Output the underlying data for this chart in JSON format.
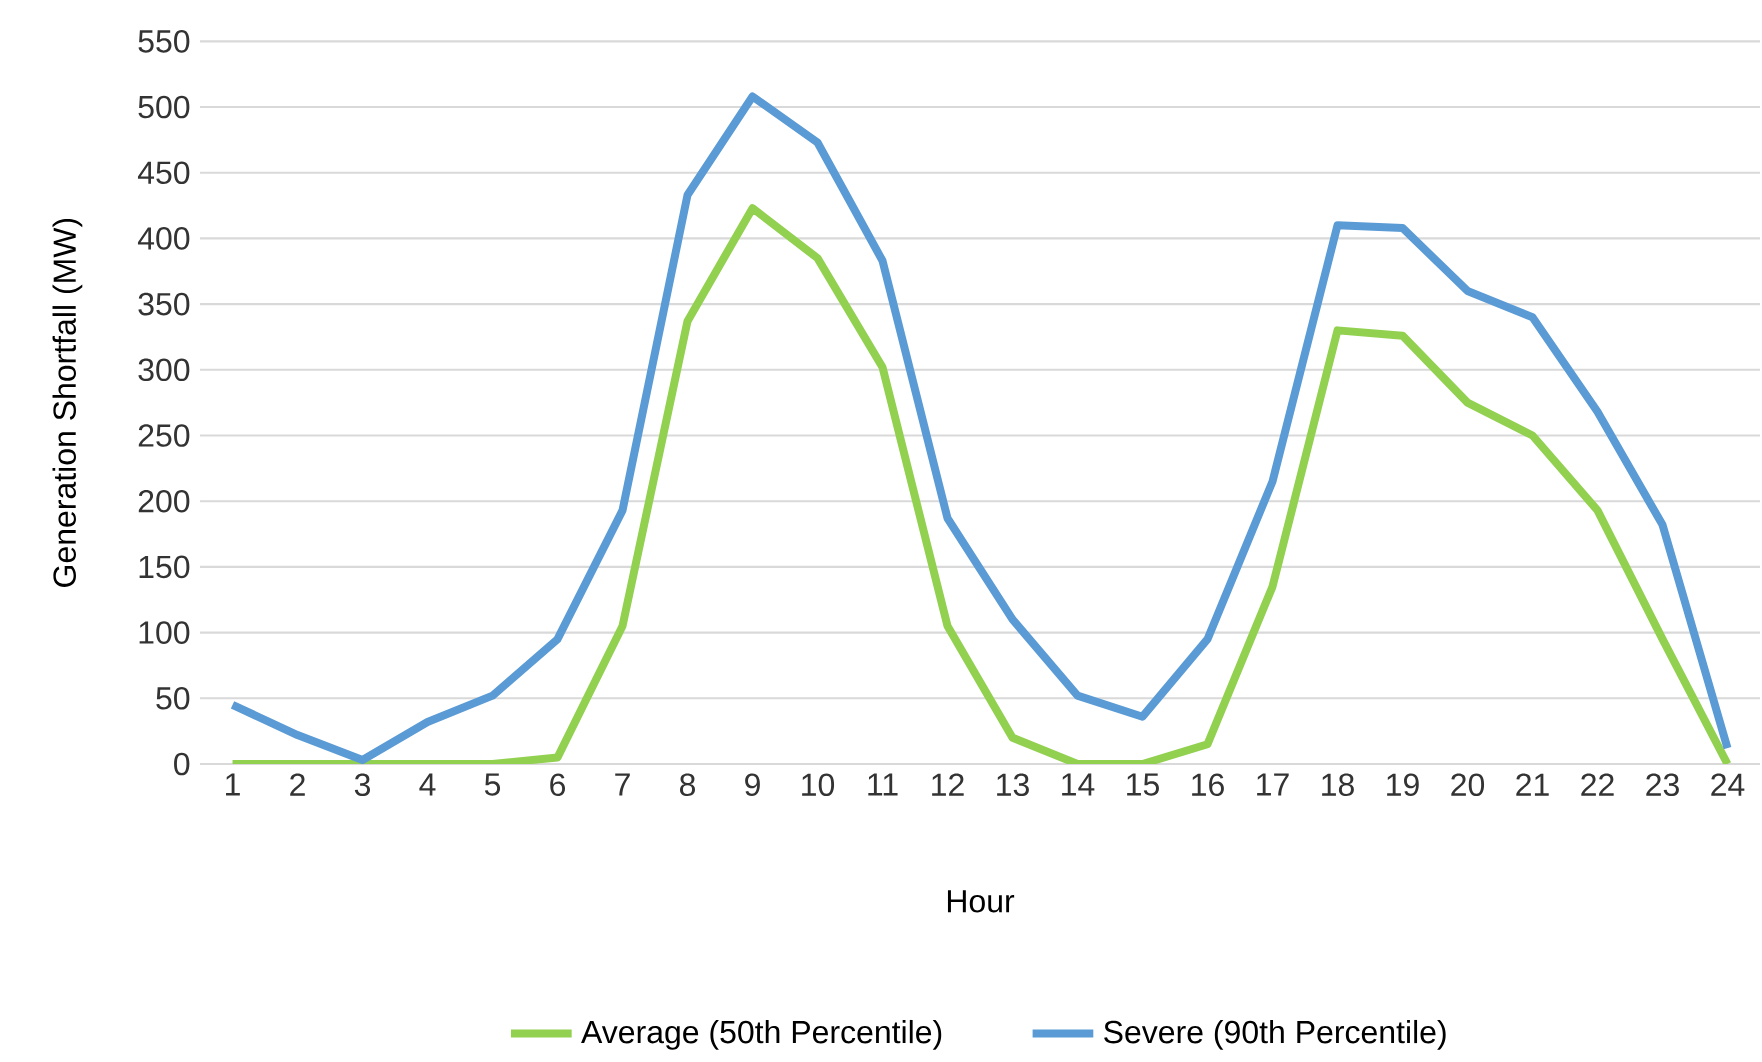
{
  "chart_data": {
    "type": "line",
    "xlabel": "Hour",
    "ylabel": "Generation Shortfall (MW)",
    "categories": [
      "1",
      "2",
      "3",
      "4",
      "5",
      "6",
      "7",
      "8",
      "9",
      "10",
      "11",
      "12",
      "13",
      "14",
      "15",
      "16",
      "17",
      "18",
      "19",
      "20",
      "21",
      "22",
      "23",
      "24"
    ],
    "series": [
      {
        "name": "Average (50th Percentile)",
        "color": "#92d050",
        "values": [
          0,
          0,
          0,
          0,
          0,
          5,
          105,
          337,
          423,
          385,
          302,
          105,
          20,
          0,
          0,
          15,
          135,
          330,
          326,
          275,
          250,
          193,
          95,
          0
        ]
      },
      {
        "name": "Severe (90th Percentile)",
        "color": "#5b9bd5",
        "values": [
          45,
          22,
          3,
          32,
          52,
          95,
          193,
          433,
          508,
          473,
          383,
          187,
          110,
          52,
          36,
          95,
          215,
          410,
          408,
          360,
          340,
          268,
          182,
          12
        ]
      }
    ],
    "ylim": [
      0,
      550
    ],
    "yticks": [
      0,
      50,
      100,
      150,
      200,
      250,
      300,
      350,
      400,
      450,
      500,
      550
    ],
    "grid": "y",
    "legend": "bottom",
    "marker": "none",
    "line_style": "solid"
  }
}
